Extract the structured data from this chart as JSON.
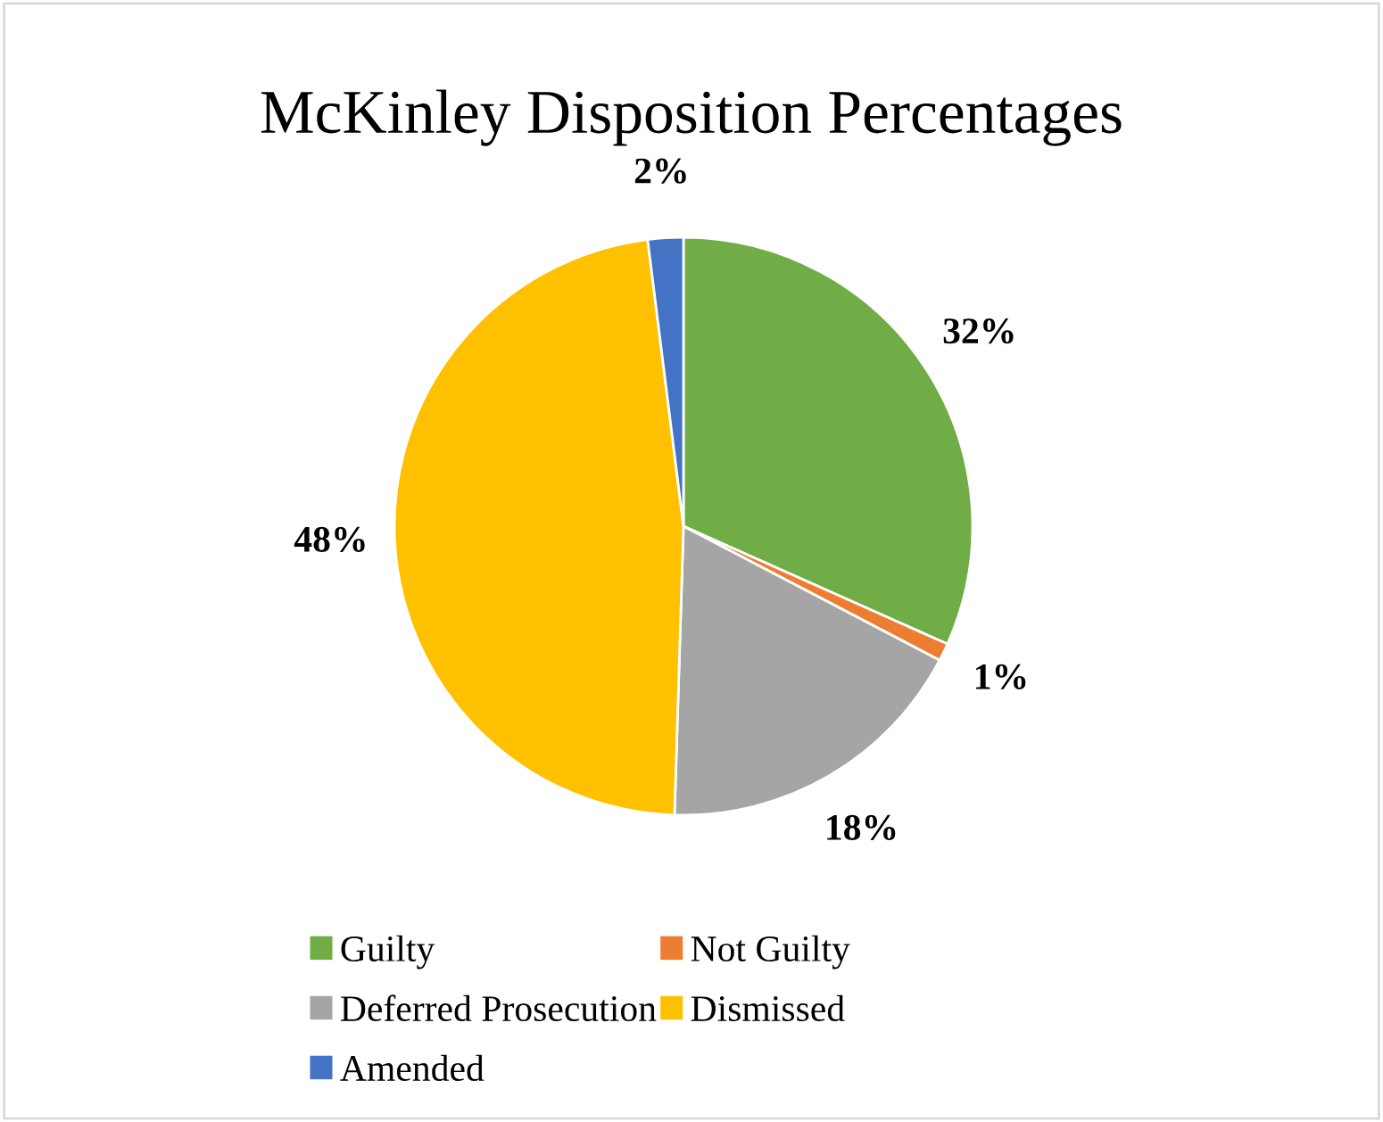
{
  "chart_data": {
    "type": "pie",
    "title": "McKinley Disposition Percentages",
    "categories": [
      "Guilty",
      "Not Guilty",
      "Deferred Prosecution",
      "Dismissed",
      "Amended"
    ],
    "values": [
      32,
      1,
      18,
      48,
      2
    ],
    "value_labels": [
      "32%",
      "1%",
      "18%",
      "48%",
      "2%"
    ],
    "colors": [
      "#70ad47",
      "#ed7d31",
      "#a5a5a5",
      "#ffc000",
      "#4472c4"
    ],
    "legend": "bottom"
  }
}
